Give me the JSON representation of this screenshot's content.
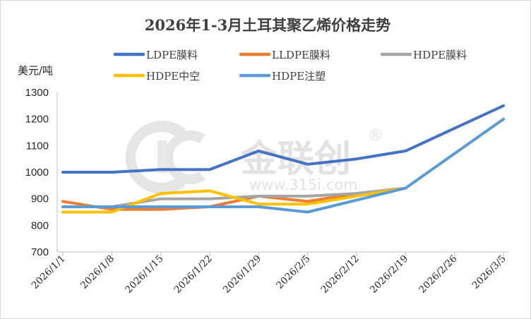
{
  "chart_data": {
    "type": "line",
    "title": "2026年1-3月土耳其聚乙烯价格走势",
    "ylabel": "美元/吨",
    "xlabel": "",
    "ylim": [
      700,
      1300
    ],
    "yticks": [
      700,
      800,
      900,
      1000,
      1100,
      1200,
      1300
    ],
    "grid": false,
    "legend_position": "top",
    "x": [
      "2026/1/1",
      "2026/1/8",
      "2026/1/15",
      "2026/1/22",
      "2026/1/29",
      "2026/2/5",
      "2026/2/12",
      "2026/2/19",
      "2026/2/26",
      "2026/3/5"
    ],
    "series": [
      {
        "name": "LDPE膜料",
        "color": "#4472c4",
        "values": [
          1000,
          1000,
          1010,
          1010,
          1080,
          1030,
          1050,
          1080,
          1165,
          1250
        ]
      },
      {
        "name": "LLDPE膜料",
        "color": "#ed7d31",
        "values": [
          890,
          860,
          860,
          870,
          910,
          890,
          920,
          940,
          null,
          null
        ]
      },
      {
        "name": "HDPE膜料",
        "color": "#a5a5a5",
        "values": [
          870,
          870,
          900,
          900,
          910,
          910,
          920,
          940,
          null,
          null
        ]
      },
      {
        "name": "HDPE中空",
        "color": "#ffc000",
        "values": [
          850,
          850,
          920,
          930,
          880,
          880,
          910,
          940,
          null,
          null
        ]
      },
      {
        "name": "HDPE注塑",
        "color": "#5b9bd5",
        "values": [
          870,
          870,
          870,
          870,
          870,
          850,
          895,
          940,
          1070,
          1200
        ]
      }
    ]
  },
  "watermark": {
    "logo_icon": "jinlianchuang-logo-icon",
    "brand": "金联创",
    "registered": "®",
    "url": "www.315i.com"
  }
}
